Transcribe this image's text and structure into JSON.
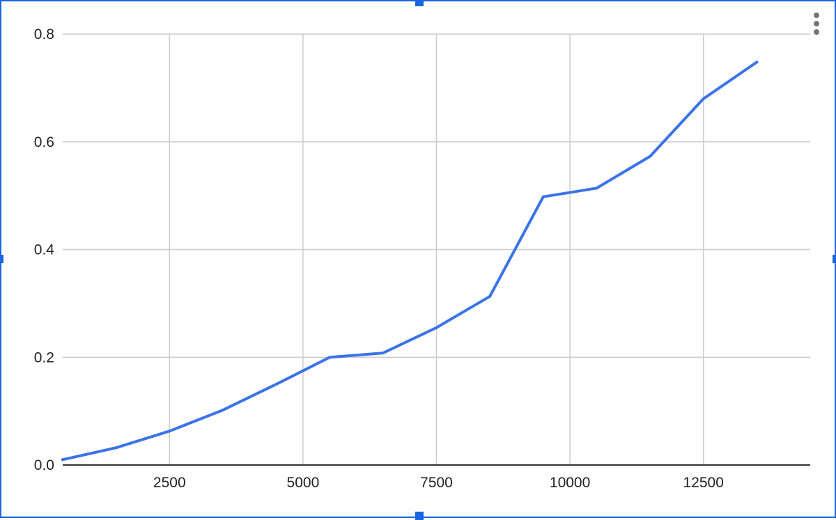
{
  "chart_data": {
    "type": "line",
    "title": "",
    "xlabel": "",
    "ylabel": "",
    "xlim": [
      500,
      14500
    ],
    "ylim": [
      0,
      0.8
    ],
    "x_ticks": [
      2500,
      5000,
      7500,
      10000,
      12500
    ],
    "x_tick_labels": [
      "2500",
      "5000",
      "7500",
      "10000",
      "12500"
    ],
    "y_ticks": [
      0,
      0.2,
      0.4,
      0.6,
      0.8
    ],
    "y_tick_labels": [
      "0.0",
      "0.2",
      "0.4",
      "0.6",
      "0.8"
    ],
    "grid": true,
    "legend": "none",
    "series": [
      {
        "color": "#3b73e8",
        "x": [
          500,
          1500,
          2500,
          3500,
          4500,
          5500,
          6500,
          7500,
          8500,
          9500,
          10500,
          11500,
          12500,
          13500
        ],
        "values": [
          0.01,
          0.032,
          0.063,
          0.102,
          0.15,
          0.2,
          0.208,
          0.255,
          0.313,
          0.498,
          0.514,
          0.573,
          0.68,
          0.748
        ]
      }
    ]
  },
  "colors": {
    "grid": "#cccccc",
    "axis": "#333333",
    "selection_border": "#1a66e0"
  },
  "icons": {
    "menu": "vertical-ellipsis-icon"
  }
}
